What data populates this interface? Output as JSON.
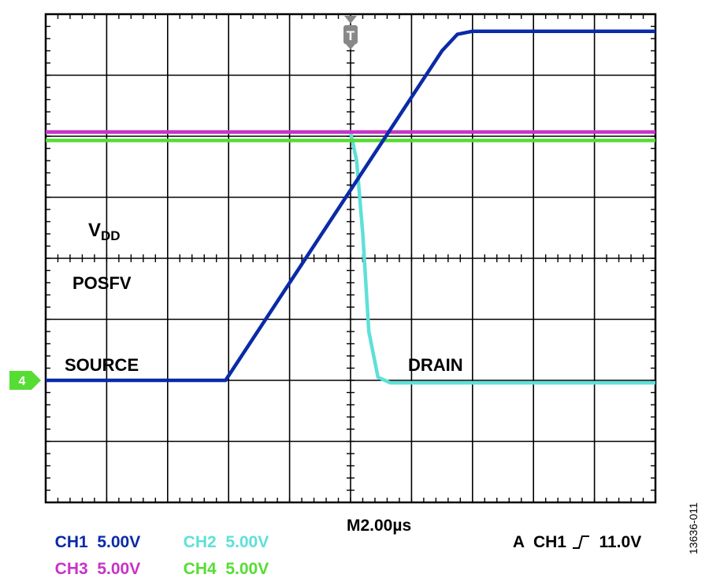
{
  "chart_data": {
    "type": "line",
    "x_divisions": 10,
    "y_divisions": 8,
    "x_range": [
      0,
      20
    ],
    "x_unit": "µs",
    "y_range": [
      -4,
      4
    ],
    "y_unit": "div",
    "grid": true,
    "trigger_marker": "T",
    "ground_marker": "4",
    "series": [
      {
        "name": "DRAIN",
        "channel": "CH2",
        "color": "#5ee0d8",
        "points": [
          [
            0,
            2.07
          ],
          [
            10.0,
            2.07
          ],
          [
            10.2,
            1.6
          ],
          [
            10.4,
            0.4
          ],
          [
            10.6,
            -1.2
          ],
          [
            10.9,
            -1.95
          ],
          [
            11.3,
            -2.04
          ],
          [
            20,
            -2.04
          ]
        ]
      },
      {
        "name": "VDD",
        "channel": "CH3",
        "color": "#c832c8",
        "points": [
          [
            0,
            2.07
          ],
          [
            20,
            2.07
          ]
        ]
      },
      {
        "name": "POSFV",
        "channel": "CH4",
        "color": "#55dd33",
        "points": [
          [
            0,
            1.93
          ],
          [
            20,
            1.93
          ]
        ]
      },
      {
        "name": "SOURCE",
        "channel": "CH1",
        "color": "#0a2aa8",
        "points": [
          [
            0,
            -2.0
          ],
          [
            5.9,
            -2.0
          ],
          [
            13.0,
            3.4
          ],
          [
            13.5,
            3.67
          ],
          [
            14.0,
            3.72
          ],
          [
            20,
            3.72
          ]
        ]
      }
    ],
    "labels": {
      "vdd_main": "V",
      "vdd_sub": "DD",
      "posfv": "POSFV",
      "source": "SOURCE",
      "drain": "DRAIN"
    }
  },
  "readout": {
    "ch1": {
      "name": "CH1",
      "scale": "5.00V",
      "color": "#0a2aa8"
    },
    "ch2": {
      "name": "CH2",
      "scale": "5.00V",
      "color": "#5ee0d8"
    },
    "ch3": {
      "name": "CH3",
      "scale": "5.00V",
      "color": "#c832c8"
    },
    "ch4": {
      "name": "CH4",
      "scale": "5.00V",
      "color": "#55dd33"
    },
    "timebase": "M2.00µs",
    "trigger_mode": "A",
    "trigger_source": "CH1",
    "trigger_level": "11.0V"
  },
  "figure_id": "13636-011"
}
